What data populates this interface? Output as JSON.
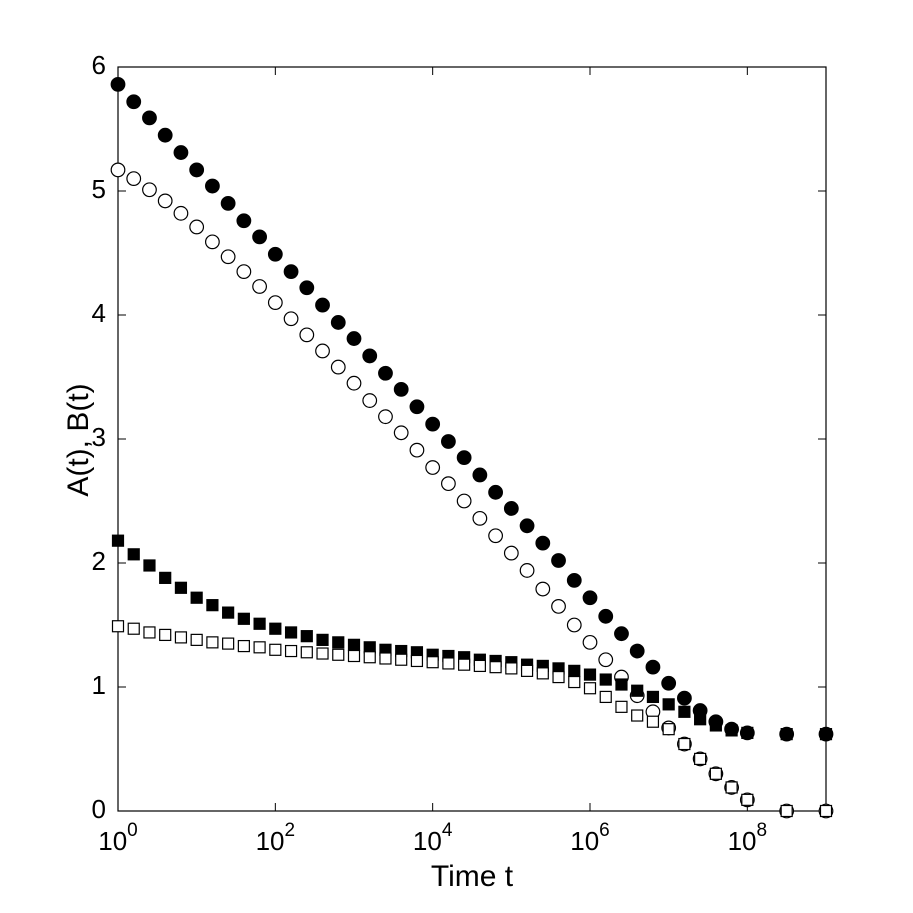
{
  "chart_data": {
    "type": "scatter",
    "xlabel": "Time t",
    "ylabel": "A(t), B(t)",
    "xscale": "log",
    "xlim": [
      1,
      1000000000
    ],
    "ylim": [
      0,
      6
    ],
    "xticks": [
      {
        "value": 1,
        "label": "10^0"
      },
      {
        "value": 100,
        "label": "10^2"
      },
      {
        "value": 10000,
        "label": "10^4"
      },
      {
        "value": 1000000,
        "label": "10^6"
      },
      {
        "value": 100000000,
        "label": "10^8"
      }
    ],
    "yticks": [
      0,
      1,
      2,
      3,
      4,
      5,
      6
    ],
    "grid": false,
    "x": [
      1,
      1.585,
      2.512,
      3.981,
      6.31,
      10,
      15.85,
      25.12,
      39.81,
      63.1,
      100,
      158.5,
      251.2,
      398.1,
      631,
      1000,
      1585,
      2512,
      3981,
      6310,
      10000,
      15850,
      25120,
      39810,
      63100,
      100000,
      158500,
      251200,
      398100,
      631000,
      1000000,
      1585000,
      2512000,
      3981000,
      6310000,
      10000000,
      15850000,
      25120000,
      39810000,
      63100000,
      100000000,
      316200000,
      1000000000
    ],
    "series": [
      {
        "marker": "circle",
        "filled": true,
        "color": "#000000",
        "values": [
          5.86,
          5.72,
          5.59,
          5.45,
          5.31,
          5.17,
          5.04,
          4.9,
          4.76,
          4.63,
          4.49,
          4.35,
          4.22,
          4.08,
          3.94,
          3.81,
          3.67,
          3.53,
          3.4,
          3.26,
          3.12,
          2.98,
          2.85,
          2.71,
          2.57,
          2.44,
          2.3,
          2.16,
          2.02,
          1.86,
          1.72,
          1.57,
          1.43,
          1.29,
          1.16,
          1.03,
          0.91,
          0.81,
          0.72,
          0.66,
          0.63,
          0.62,
          0.62
        ]
      },
      {
        "marker": "circle",
        "filled": false,
        "color": "#000000",
        "values": [
          5.17,
          5.1,
          5.01,
          4.92,
          4.82,
          4.71,
          4.59,
          4.47,
          4.35,
          4.23,
          4.1,
          3.97,
          3.84,
          3.71,
          3.58,
          3.45,
          3.31,
          3.18,
          3.05,
          2.91,
          2.77,
          2.64,
          2.5,
          2.36,
          2.22,
          2.08,
          1.94,
          1.79,
          1.65,
          1.5,
          1.36,
          1.22,
          1.08,
          0.93,
          0.8,
          0.67,
          0.54,
          0.42,
          0.3,
          0.19,
          0.09,
          0,
          0
        ]
      },
      {
        "marker": "square",
        "filled": true,
        "color": "#000000",
        "values": [
          2.18,
          2.07,
          1.98,
          1.88,
          1.8,
          1.72,
          1.66,
          1.6,
          1.55,
          1.51,
          1.47,
          1.44,
          1.41,
          1.38,
          1.36,
          1.34,
          1.32,
          1.3,
          1.29,
          1.28,
          1.26,
          1.25,
          1.24,
          1.22,
          1.21,
          1.2,
          1.18,
          1.17,
          1.15,
          1.13,
          1.1,
          1.06,
          1.02,
          0.97,
          0.92,
          0.86,
          0.8,
          0.74,
          0.69,
          0.65,
          0.63,
          0.62,
          0.62
        ]
      },
      {
        "marker": "square",
        "filled": false,
        "color": "#000000",
        "values": [
          1.49,
          1.47,
          1.44,
          1.42,
          1.4,
          1.38,
          1.36,
          1.35,
          1.33,
          1.32,
          1.3,
          1.29,
          1.28,
          1.27,
          1.26,
          1.25,
          1.24,
          1.23,
          1.22,
          1.21,
          1.2,
          1.19,
          1.18,
          1.17,
          1.16,
          1.15,
          1.13,
          1.11,
          1.08,
          1.04,
          0.99,
          0.92,
          0.84,
          0.77,
          0.72,
          0.66,
          0.54,
          0.42,
          0.3,
          0.19,
          0.09,
          0,
          0
        ]
      }
    ]
  }
}
